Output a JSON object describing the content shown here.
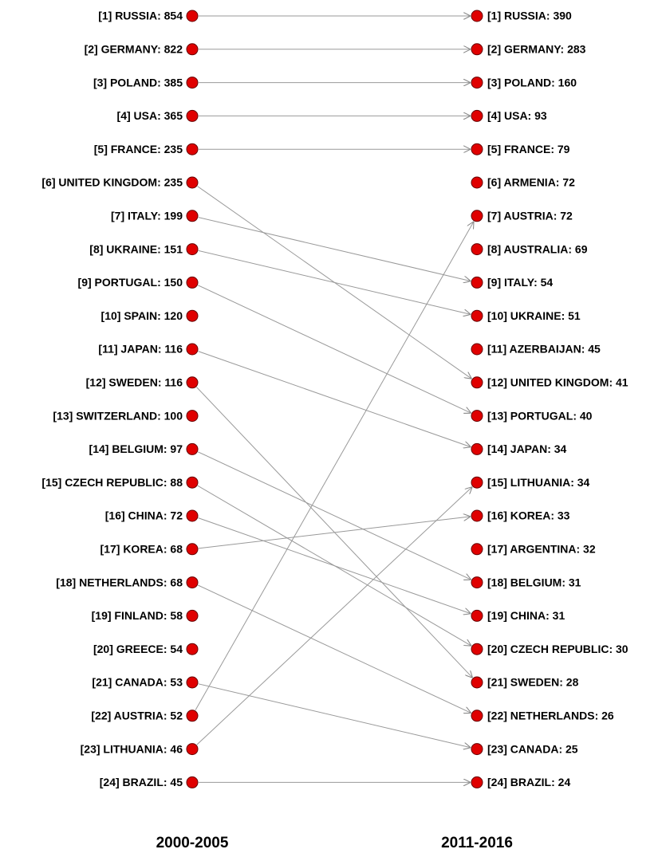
{
  "columns": [
    {
      "title": "2000-2005",
      "items": [
        "[1] RUSSIA: 854",
        "[2] GERMANY: 822",
        "[3] POLAND: 385",
        "[4] USA: 365",
        "[5] FRANCE: 235",
        "[6] UNITED KINGDOM: 235",
        "[7] ITALY: 199",
        "[8] UKRAINE: 151",
        "[9] PORTUGAL: 150",
        "[10] SPAIN: 120",
        "[11] JAPAN: 116",
        "[12] SWEDEN: 116",
        "[13] SWITZERLAND: 100",
        "[14] BELGIUM: 97",
        "[15] CZECH REPUBLIC: 88",
        "[16] CHINA: 72",
        "[17] KOREA: 68",
        "[18] NETHERLANDS: 68",
        "[19] FINLAND: 58",
        "[20] GREECE: 54",
        "[21] CANADA: 53",
        "[22] AUSTRIA: 52",
        "[23] LITHUANIA: 46",
        "[24] BRAZIL: 45"
      ]
    },
    {
      "title": "2011-2016",
      "items": [
        "[1] RUSSIA: 390",
        "[2] GERMANY: 283",
        "[3] POLAND: 160",
        "[4] USA: 93",
        "[5] FRANCE: 79",
        "[6] ARMENIA: 72",
        "[7] AUSTRIA: 72",
        "[8] AUSTRALIA: 69",
        "[9] ITALY: 54",
        "[10] UKRAINE: 51",
        "[11] AZERBAIJAN: 45",
        "[12] UNITED KINGDOM: 41",
        "[13] PORTUGAL: 40",
        "[14] JAPAN: 34",
        "[15] LITHUANIA: 34",
        "[16] KOREA: 33",
        "[17] ARGENTINA: 32",
        "[18] BELGIUM: 31",
        "[19] CHINA: 31",
        "[20] CZECH REPUBLIC: 30",
        "[21] SWEDEN: 28",
        "[22] NETHERLANDS: 26",
        "[23] CANADA: 25",
        "[24] BRAZIL: 24"
      ]
    }
  ],
  "links": [
    [
      0,
      0
    ],
    [
      1,
      1
    ],
    [
      2,
      2
    ],
    [
      3,
      3
    ],
    [
      4,
      4
    ],
    [
      5,
      11
    ],
    [
      6,
      8
    ],
    [
      7,
      9
    ],
    [
      8,
      12
    ],
    [
      10,
      13
    ],
    [
      11,
      20
    ],
    [
      13,
      17
    ],
    [
      14,
      19
    ],
    [
      15,
      18
    ],
    [
      16,
      15
    ],
    [
      17,
      21
    ],
    [
      20,
      22
    ],
    [
      21,
      6
    ],
    [
      22,
      14
    ],
    [
      23,
      23
    ]
  ]
}
